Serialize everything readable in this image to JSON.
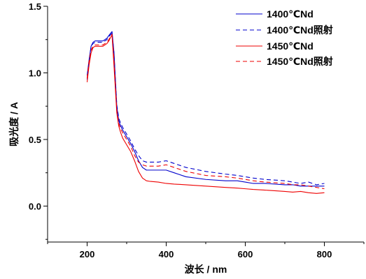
{
  "chart_data": {
    "type": "line",
    "xlabel": "波长 / nm",
    "ylabel": "吸光度 / A",
    "xlim": [
      100,
      900
    ],
    "ylim": [
      -0.27,
      1.5
    ],
    "xticks": [
      200,
      400,
      600,
      800
    ],
    "xtick_labels": [
      "200",
      "400",
      "600",
      "800"
    ],
    "xminor_ticks": [
      100,
      300,
      500,
      700,
      900
    ],
    "yticks": [
      0.0,
      0.5,
      1.0,
      1.5
    ],
    "ytick_labels": [
      "0.0",
      "0.5",
      "1.0",
      "1.5"
    ],
    "yminor_ticks": [
      -0.25,
      0.25,
      0.75,
      1.25
    ],
    "grid": false,
    "legend": "top-right",
    "x": [
      200,
      205,
      210,
      215,
      220,
      230,
      240,
      250,
      255,
      260,
      263,
      268,
      275,
      280,
      285,
      290,
      300,
      310,
      320,
      330,
      340,
      350,
      360,
      380,
      400,
      420,
      450,
      500,
      550,
      580,
      600,
      620,
      650,
      700,
      720,
      740,
      760,
      780,
      800
    ],
    "series": [
      {
        "name": "1400℃Nd",
        "color": "#0000cc",
        "style": "solid",
        "values": [
          0.98,
          1.1,
          1.2,
          1.23,
          1.24,
          1.24,
          1.24,
          1.26,
          1.28,
          1.3,
          1.31,
          1.15,
          0.75,
          0.64,
          0.6,
          0.57,
          0.52,
          0.47,
          0.41,
          0.34,
          0.29,
          0.27,
          0.27,
          0.27,
          0.27,
          0.25,
          0.22,
          0.2,
          0.19,
          0.19,
          0.18,
          0.17,
          0.17,
          0.16,
          0.16,
          0.15,
          0.15,
          0.15,
          0.15
        ]
      },
      {
        "name": "1400℃Nd照射",
        "color": "#0000cc",
        "style": "dashed",
        "values": [
          0.95,
          1.08,
          1.2,
          1.22,
          1.23,
          1.23,
          1.23,
          1.25,
          1.27,
          1.29,
          1.3,
          1.14,
          0.76,
          0.66,
          0.62,
          0.59,
          0.54,
          0.49,
          0.43,
          0.38,
          0.34,
          0.33,
          0.33,
          0.33,
          0.34,
          0.32,
          0.29,
          0.26,
          0.24,
          0.23,
          0.22,
          0.21,
          0.2,
          0.19,
          0.18,
          0.17,
          0.18,
          0.16,
          0.17
        ]
      },
      {
        "name": "1450℃Nd",
        "color": "#ee0000",
        "style": "solid",
        "values": [
          0.93,
          1.06,
          1.15,
          1.19,
          1.2,
          1.2,
          1.2,
          1.22,
          1.24,
          1.27,
          1.28,
          1.05,
          0.7,
          0.6,
          0.55,
          0.51,
          0.46,
          0.41,
          0.34,
          0.26,
          0.21,
          0.19,
          0.185,
          0.18,
          0.17,
          0.165,
          0.16,
          0.15,
          0.14,
          0.135,
          0.13,
          0.125,
          0.12,
          0.11,
          0.105,
          0.11,
          0.1,
          0.095,
          0.1
        ]
      },
      {
        "name": "1450℃Nd照射",
        "color": "#ee0000",
        "style": "dashed",
        "values": [
          0.96,
          1.09,
          1.17,
          1.2,
          1.21,
          1.21,
          1.21,
          1.23,
          1.25,
          1.28,
          1.29,
          1.1,
          0.72,
          0.62,
          0.58,
          0.55,
          0.5,
          0.45,
          0.38,
          0.33,
          0.31,
          0.3,
          0.3,
          0.3,
          0.31,
          0.29,
          0.26,
          0.23,
          0.22,
          0.21,
          0.2,
          0.19,
          0.18,
          0.17,
          0.16,
          0.16,
          0.15,
          0.14,
          0.13
        ]
      }
    ]
  }
}
